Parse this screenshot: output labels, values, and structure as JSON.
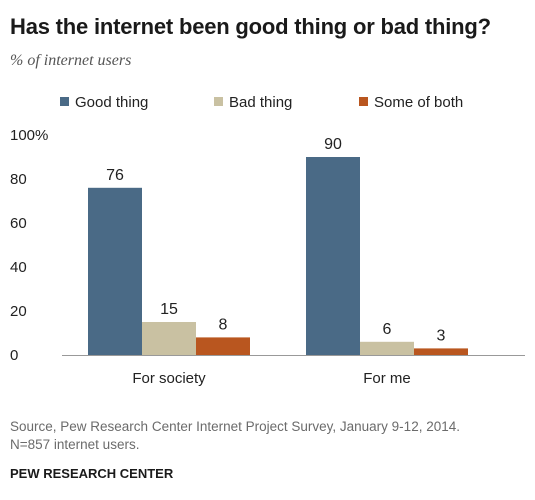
{
  "header": {
    "title": "Has the internet been good thing or bad thing?",
    "subtitle": "% of internet users"
  },
  "footer": {
    "source_line1": "Source, Pew Research Center Internet Project Survey, January 9-12, 2014.",
    "source_line2": "N=857 internet users.",
    "org": "PEW RESEARCH CENTER"
  },
  "chart_data": {
    "type": "bar",
    "title": "Has the internet been good thing or bad thing?",
    "subtitle": "% of internet users",
    "categories": [
      "For society",
      "For me"
    ],
    "series": [
      {
        "name": "Good thing",
        "values": [
          76,
          90
        ],
        "color": "#4a6a86"
      },
      {
        "name": "Bad thing",
        "values": [
          15,
          6
        ],
        "color": "#c9c1a2"
      },
      {
        "name": "Some of both",
        "values": [
          8,
          3
        ],
        "color": "#b9561f"
      }
    ],
    "ylim": [
      0,
      100
    ],
    "yticks": [
      0,
      20,
      40,
      60,
      80,
      100
    ],
    "ytick_labels": [
      "0",
      "20",
      "40",
      "60",
      "80",
      "100%"
    ],
    "legend": "top",
    "grid": false
  }
}
